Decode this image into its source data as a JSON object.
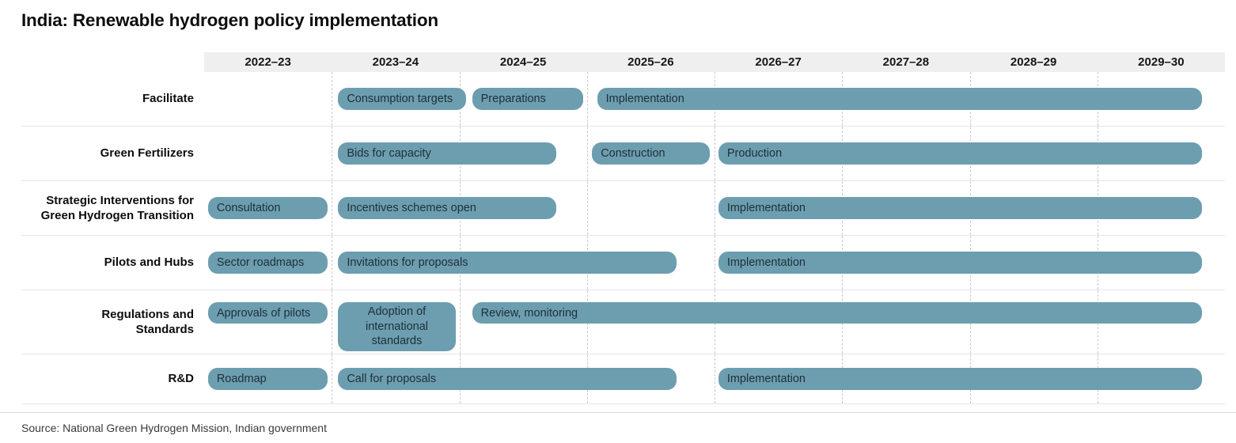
{
  "title": "India: Renewable hydrogen policy implementation",
  "source": "Source: National Green Hydrogen Mission, Indian government",
  "colors": {
    "bar": "#6d9eb0",
    "bar_text": "#1d2f38",
    "header_bg": "#efefef",
    "grid": "#c9c9c9",
    "row_line": "#e6e6e6"
  },
  "chart_data": {
    "type": "gantt",
    "title": "India: Renewable hydrogen policy implementation",
    "x_domain": [
      0,
      8
    ],
    "grid": "dashed-vertical",
    "columns": [
      "2022–23",
      "2023–24",
      "2024–25",
      "2025–26",
      "2026–27",
      "2027–28",
      "2028–29",
      "2029–30"
    ],
    "rows": [
      {
        "label": "Facilitate",
        "bars": [
          {
            "text": "Consumption targets",
            "start": 1.05,
            "end": 2.05
          },
          {
            "text": "Preparations",
            "start": 2.1,
            "end": 2.97
          },
          {
            "text": "Implementation",
            "start": 3.08,
            "end": 7.82
          }
        ]
      },
      {
        "label": "Green Fertilizers",
        "bars": [
          {
            "text": "Bids for capacity",
            "start": 1.05,
            "end": 2.76
          },
          {
            "text": "Construction",
            "start": 3.04,
            "end": 3.96
          },
          {
            "text": "Production",
            "start": 4.03,
            "end": 7.82
          }
        ]
      },
      {
        "label": "Strategic Interventions for\nGreen Hydrogen Transition",
        "bars": [
          {
            "text": "Consultation",
            "start": 0.03,
            "end": 0.97
          },
          {
            "text": "Incentives schemes open",
            "start": 1.05,
            "end": 2.76
          },
          {
            "text": "Implementation",
            "start": 4.03,
            "end": 7.82
          }
        ]
      },
      {
        "label": "Pilots and Hubs",
        "bars": [
          {
            "text": "Sector roadmaps",
            "start": 0.03,
            "end": 0.97
          },
          {
            "text": "Invitations for proposals",
            "start": 1.05,
            "end": 3.7
          },
          {
            "text": "Implementation",
            "start": 4.03,
            "end": 7.82
          }
        ]
      },
      {
        "label": "Regulations and\nStandards",
        "bars": [
          {
            "text": "Approvals of pilots",
            "start": 0.03,
            "end": 0.97
          },
          {
            "text": "Adoption of international standards",
            "start": 1.05,
            "end": 1.97,
            "tall": true
          },
          {
            "text": "Review, monitoring",
            "start": 2.1,
            "end": 7.82
          }
        ]
      },
      {
        "label": "R&D",
        "bars": [
          {
            "text": "Roadmap",
            "start": 0.03,
            "end": 0.97
          },
          {
            "text": "Call for proposals",
            "start": 1.05,
            "end": 3.7
          },
          {
            "text": "Implementation",
            "start": 4.03,
            "end": 7.82
          }
        ]
      }
    ]
  }
}
